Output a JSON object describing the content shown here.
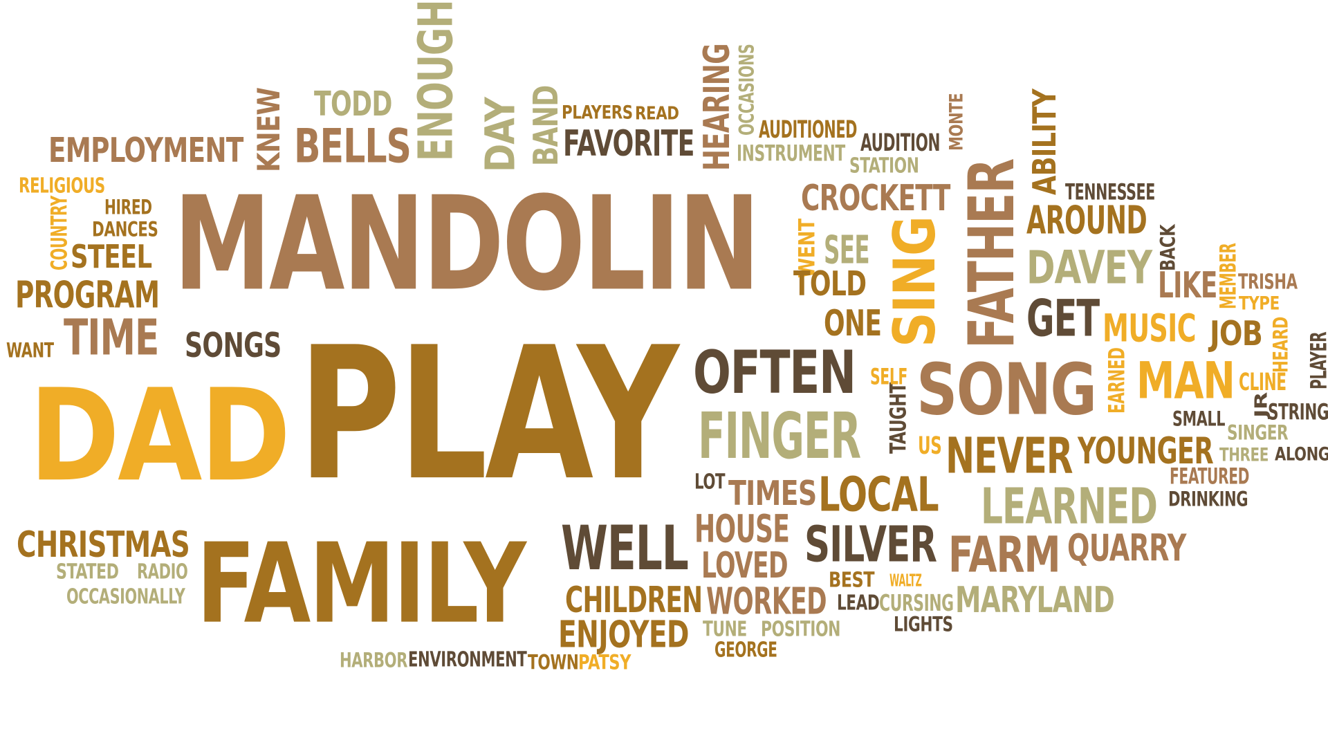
{
  "palette": {
    "tan": "#A97A52",
    "brown": "#A4721F",
    "gold": "#F0AD27",
    "khaki": "#B3AE79",
    "dark": "#5F4B36"
  },
  "words": [
    {
      "text": "MANDOLIN",
      "color": "tan",
      "vertical": false
    },
    {
      "text": "PLAY",
      "color": "brown",
      "vertical": false
    },
    {
      "text": "DAD",
      "color": "gold",
      "vertical": false
    },
    {
      "text": "FAMILY",
      "color": "brown",
      "vertical": false
    },
    {
      "text": "SONG",
      "color": "tan",
      "vertical": false
    },
    {
      "text": "OFTEN",
      "color": "dark",
      "vertical": false
    },
    {
      "text": "FINGER",
      "color": "khaki",
      "vertical": false
    },
    {
      "text": "WELL",
      "color": "dark",
      "vertical": false
    },
    {
      "text": "FATHER",
      "color": "tan",
      "vertical": true
    },
    {
      "text": "SING",
      "color": "gold",
      "vertical": true
    },
    {
      "text": "ENOUGH",
      "color": "khaki",
      "vertical": true
    },
    {
      "text": "BELLS",
      "color": "tan",
      "vertical": false
    },
    {
      "text": "TODD",
      "color": "khaki",
      "vertical": false
    },
    {
      "text": "KNEW",
      "color": "tan",
      "vertical": true
    },
    {
      "text": "EMPLOYMENT",
      "color": "tan",
      "vertical": false
    },
    {
      "text": "DAY",
      "color": "khaki",
      "vertical": true
    },
    {
      "text": "BAND",
      "color": "khaki",
      "vertical": true
    },
    {
      "text": "PLAYERS",
      "color": "brown",
      "vertical": false
    },
    {
      "text": "READ",
      "color": "brown",
      "vertical": false
    },
    {
      "text": "FAVORITE",
      "color": "dark",
      "vertical": false
    },
    {
      "text": "HEARING",
      "color": "tan",
      "vertical": true
    },
    {
      "text": "OCCASIONS",
      "color": "khaki",
      "vertical": true
    },
    {
      "text": "AUDITIONED",
      "color": "brown",
      "vertical": false
    },
    {
      "text": "INSTRUMENT",
      "color": "khaki",
      "vertical": false
    },
    {
      "text": "AUDITION",
      "color": "dark",
      "vertical": false
    },
    {
      "text": "STATION",
      "color": "khaki",
      "vertical": false
    },
    {
      "text": "MONTE",
      "color": "tan",
      "vertical": true
    },
    {
      "text": "ABILITY",
      "color": "brown",
      "vertical": true
    },
    {
      "text": "CROCKETT",
      "color": "tan",
      "vertical": false
    },
    {
      "text": "TENNESSEE",
      "color": "dark",
      "vertical": false
    },
    {
      "text": "AROUND",
      "color": "brown",
      "vertical": false
    },
    {
      "text": "DAVEY",
      "color": "khaki",
      "vertical": false
    },
    {
      "text": "BACK",
      "color": "dark",
      "vertical": true
    },
    {
      "text": "MEMBER",
      "color": "gold",
      "vertical": true
    },
    {
      "text": "LIKE",
      "color": "tan",
      "vertical": false
    },
    {
      "text": "TRISHA",
      "color": "tan",
      "vertical": false
    },
    {
      "text": "TYPE",
      "color": "gold",
      "vertical": false
    },
    {
      "text": "GET",
      "color": "dark",
      "vertical": false
    },
    {
      "text": "MUSIC",
      "color": "gold",
      "vertical": false
    },
    {
      "text": "JOB",
      "color": "brown",
      "vertical": false
    },
    {
      "text": "HEARD",
      "color": "gold",
      "vertical": true
    },
    {
      "text": "PLAYER",
      "color": "dark",
      "vertical": true
    },
    {
      "text": "MAN",
      "color": "gold",
      "vertical": false
    },
    {
      "text": "CLINE",
      "color": "gold",
      "vertical": false
    },
    {
      "text": "EARNED",
      "color": "gold",
      "vertical": true
    },
    {
      "text": "JR",
      "color": "dark",
      "vertical": true
    },
    {
      "text": "STRING",
      "color": "dark",
      "vertical": false
    },
    {
      "text": "SMALL",
      "color": "dark",
      "vertical": false
    },
    {
      "text": "SINGER",
      "color": "khaki",
      "vertical": false
    },
    {
      "text": "THREE",
      "color": "khaki",
      "vertical": false
    },
    {
      "text": "ALONG",
      "color": "dark",
      "vertical": false
    },
    {
      "text": "FEATURED",
      "color": "tan",
      "vertical": false
    },
    {
      "text": "DRINKING",
      "color": "dark",
      "vertical": false
    },
    {
      "text": "YOUNGER",
      "color": "brown",
      "vertical": false
    },
    {
      "text": "NEVER",
      "color": "brown",
      "vertical": false
    },
    {
      "text": "US",
      "color": "gold",
      "vertical": false
    },
    {
      "text": "TAUGHT",
      "color": "dark",
      "vertical": true
    },
    {
      "text": "SELF",
      "color": "gold",
      "vertical": false
    },
    {
      "text": "LEARNED",
      "color": "khaki",
      "vertical": false
    },
    {
      "text": "QUARRY",
      "color": "tan",
      "vertical": false
    },
    {
      "text": "FARM",
      "color": "tan",
      "vertical": false
    },
    {
      "text": "MARYLAND",
      "color": "khaki",
      "vertical": false
    },
    {
      "text": "LOCAL",
      "color": "brown",
      "vertical": false
    },
    {
      "text": "TIMES",
      "color": "tan",
      "vertical": false
    },
    {
      "text": "LOT",
      "color": "dark",
      "vertical": false
    },
    {
      "text": "SILVER",
      "color": "dark",
      "vertical": false
    },
    {
      "text": "HOUSE",
      "color": "tan",
      "vertical": false
    },
    {
      "text": "LOVED",
      "color": "tan",
      "vertical": false
    },
    {
      "text": "BEST",
      "color": "brown",
      "vertical": false
    },
    {
      "text": "WALTZ",
      "color": "gold",
      "vertical": false
    },
    {
      "text": "LEAD",
      "color": "dark",
      "vertical": false
    },
    {
      "text": "CURSING",
      "color": "khaki",
      "vertical": false
    },
    {
      "text": "LIGHTS",
      "color": "dark",
      "vertical": false
    },
    {
      "text": "CHILDREN",
      "color": "brown",
      "vertical": false
    },
    {
      "text": "WORKED",
      "color": "tan",
      "vertical": false
    },
    {
      "text": "ENJOYED",
      "color": "brown",
      "vertical": false
    },
    {
      "text": "TUNE",
      "color": "khaki",
      "vertical": false
    },
    {
      "text": "POSITION",
      "color": "khaki",
      "vertical": false
    },
    {
      "text": "GEORGE",
      "color": "brown",
      "vertical": false
    },
    {
      "text": "HARBOR",
      "color": "khaki",
      "vertical": false
    },
    {
      "text": "ENVIRONMENT",
      "color": "dark",
      "vertical": false
    },
    {
      "text": "TOWN",
      "color": "brown",
      "vertical": false
    },
    {
      "text": "PATSY",
      "color": "gold",
      "vertical": false
    },
    {
      "text": "CHRISTMAS",
      "color": "brown",
      "vertical": false
    },
    {
      "text": "STATED",
      "color": "khaki",
      "vertical": false
    },
    {
      "text": "RADIO",
      "color": "khaki",
      "vertical": false
    },
    {
      "text": "OCCASIONALLY",
      "color": "khaki",
      "vertical": false
    },
    {
      "text": "RELIGIOUS",
      "color": "gold",
      "vertical": false
    },
    {
      "text": "COUNTRY",
      "color": "gold",
      "vertical": true
    },
    {
      "text": "HIRED",
      "color": "brown",
      "vertical": false
    },
    {
      "text": "DANCES",
      "color": "brown",
      "vertical": false
    },
    {
      "text": "STEEL",
      "color": "brown",
      "vertical": false
    },
    {
      "text": "PROGRAM",
      "color": "brown",
      "vertical": false
    },
    {
      "text": "TIME",
      "color": "tan",
      "vertical": false
    },
    {
      "text": "WANT",
      "color": "brown",
      "vertical": false
    },
    {
      "text": "SONGS",
      "color": "dark",
      "vertical": false
    },
    {
      "text": "WENT",
      "color": "gold",
      "vertical": true
    },
    {
      "text": "SEE",
      "color": "khaki",
      "vertical": false
    },
    {
      "text": "TOLD",
      "color": "brown",
      "vertical": false
    },
    {
      "text": "ONE",
      "color": "brown",
      "vertical": false
    }
  ]
}
